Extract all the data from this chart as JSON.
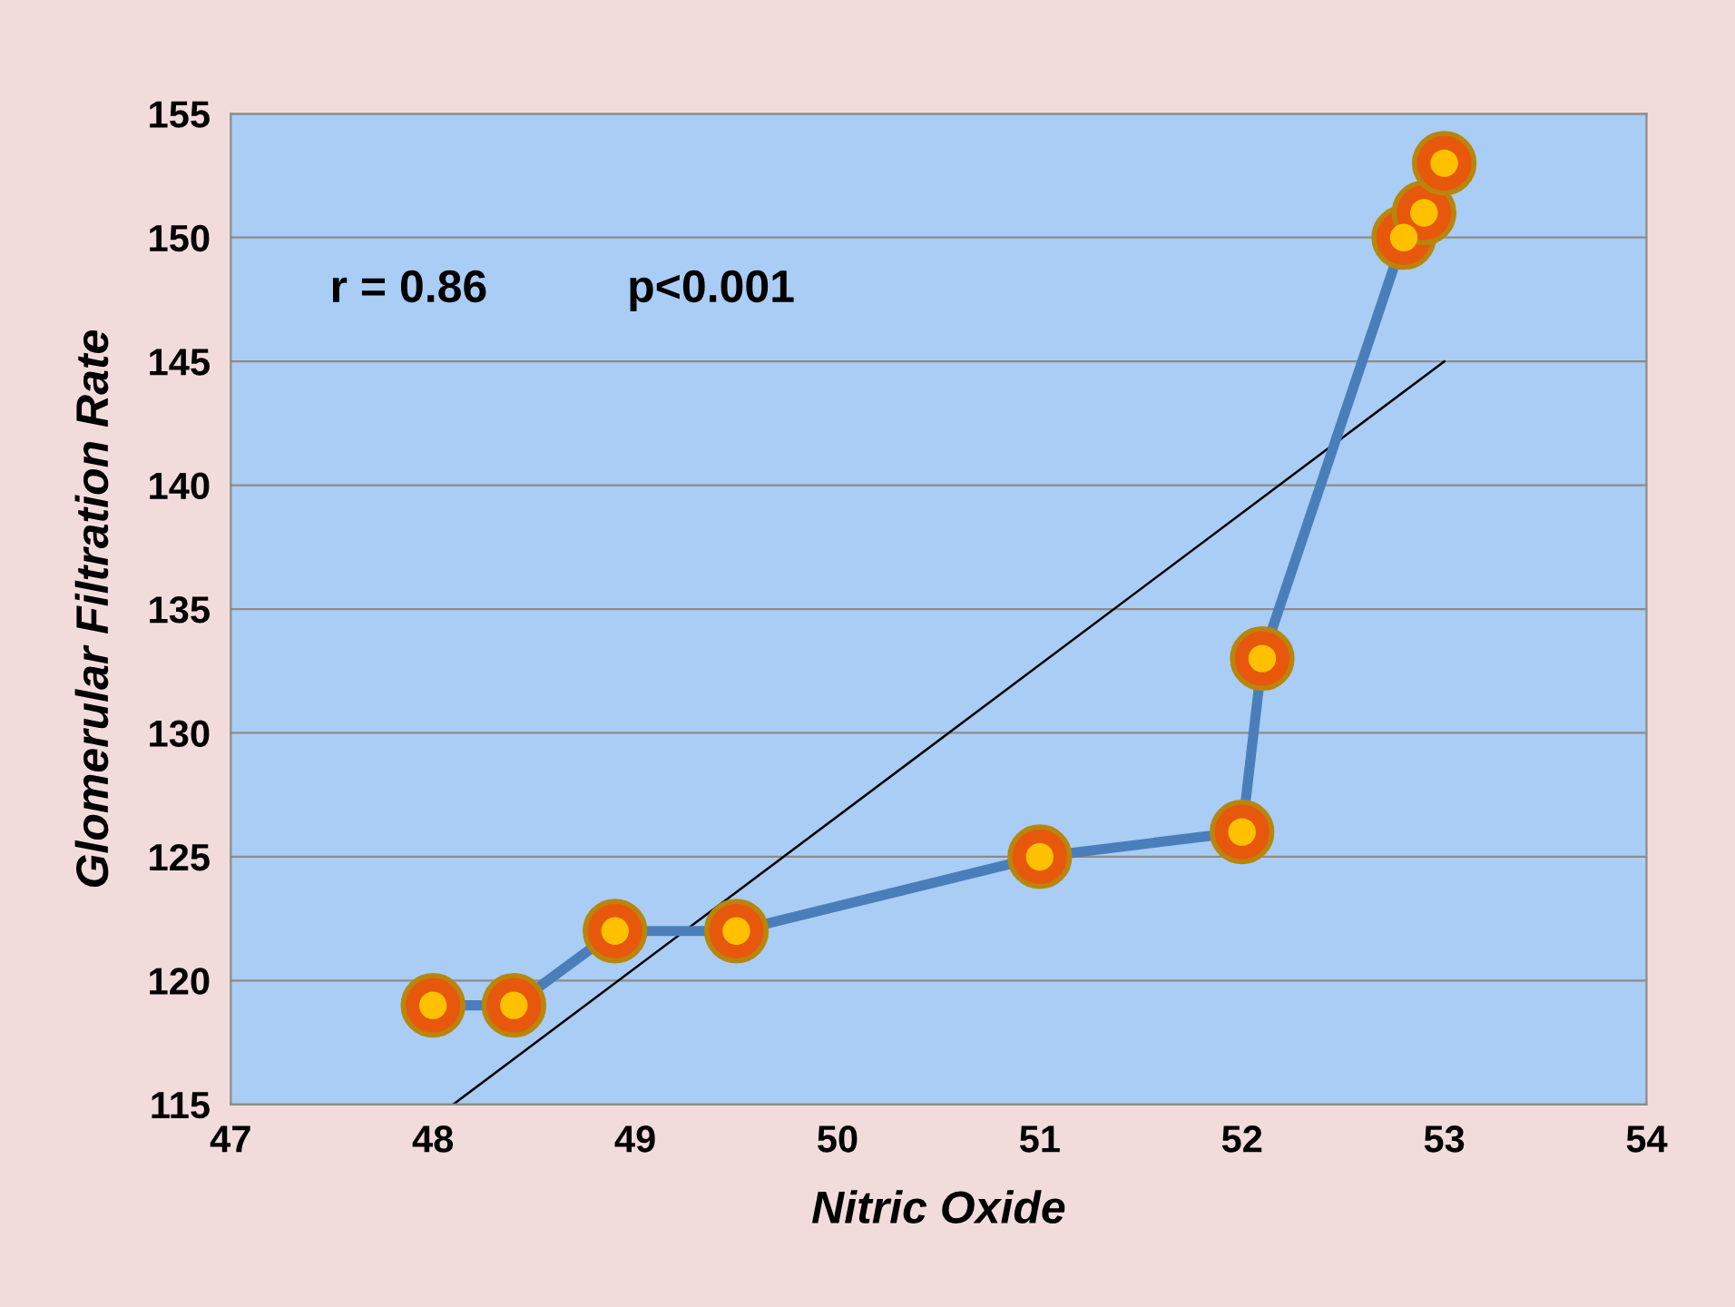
{
  "chart_data": {
    "type": "line",
    "xlabel": "Nitric Oxide",
    "ylabel": "Glomerular Filtration Rate",
    "annotations": [
      "r = 0.86",
      "p<0.001"
    ],
    "xlim": [
      47,
      54
    ],
    "xticks": [
      47,
      48,
      49,
      50,
      51,
      52,
      53,
      54
    ],
    "ylim": [
      115,
      155
    ],
    "yticks": [
      115,
      120,
      125,
      130,
      135,
      140,
      145,
      150,
      155
    ],
    "grid": "y",
    "legend": false,
    "series": [
      {
        "color": "#4a7ebb",
        "marker": "circle",
        "x": [
          48,
          48.4,
          48.9,
          49.5,
          51,
          52,
          52.1,
          52.8,
          52.9,
          53
        ],
        "values": [
          119,
          119,
          122,
          122,
          125,
          126,
          133,
          150,
          151,
          153
        ]
      },
      {
        "type": "line",
        "color": "#000000",
        "marker": "none",
        "x": [
          48.1,
          53
        ],
        "values": [
          115,
          145
        ]
      }
    ]
  }
}
